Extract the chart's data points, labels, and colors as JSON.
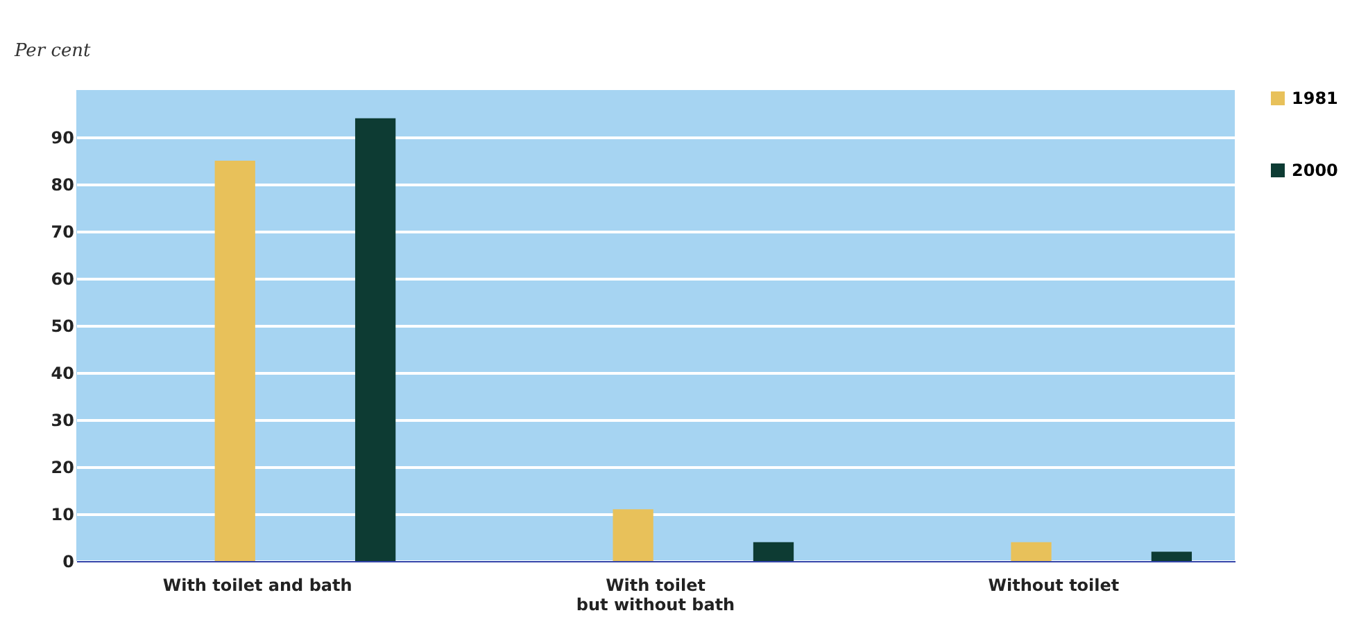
{
  "chart_data": {
    "type": "bar",
    "ylabel": "Per cent",
    "categories": [
      "With toilet and bath",
      "With toilet\nbut without bath",
      "Without toilet"
    ],
    "series": [
      {
        "name": "1981",
        "color": "#e8c15a",
        "values": [
          85,
          11,
          4
        ]
      },
      {
        "name": "2000",
        "color": "#0d3b33",
        "values": [
          94,
          4,
          2
        ]
      }
    ],
    "ylim": [
      0,
      100
    ],
    "yticks": [
      0,
      10,
      20,
      30,
      40,
      50,
      60,
      70,
      80,
      90
    ],
    "grid": "y",
    "legend": "top right"
  }
}
